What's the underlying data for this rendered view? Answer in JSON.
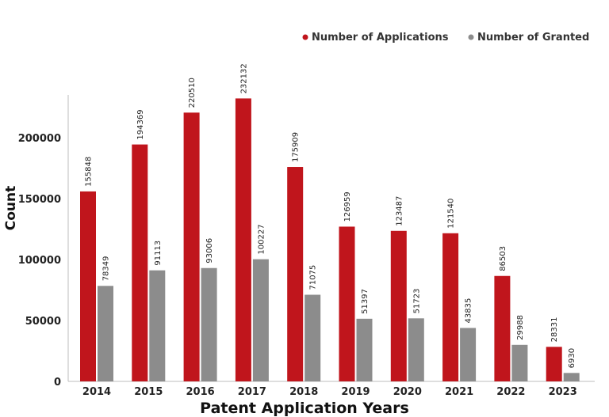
{
  "chart_data": {
    "type": "bar",
    "categories": [
      "2014",
      "2015",
      "2016",
      "2017",
      "2018",
      "2019",
      "2020",
      "2021",
      "2022",
      "2023"
    ],
    "series": [
      {
        "name": "Number of Applications",
        "color": "#c0151c",
        "values": [
          155848,
          194369,
          220510,
          232132,
          175909,
          126959,
          123487,
          121540,
          86503,
          28331
        ]
      },
      {
        "name": "Number of Granted",
        "color": "#8c8c8c",
        "values": [
          78349,
          91113,
          93006,
          100227,
          71075,
          51397,
          51723,
          43835,
          29988,
          6930
        ]
      }
    ],
    "xlabel": "Patent Application Years",
    "ylabel": "Count",
    "ylim": [
      0,
      235000
    ],
    "yticks": [
      0,
      50000,
      100000,
      150000,
      200000
    ],
    "legend_position": "top-right",
    "grid": false,
    "data_labels": true
  }
}
